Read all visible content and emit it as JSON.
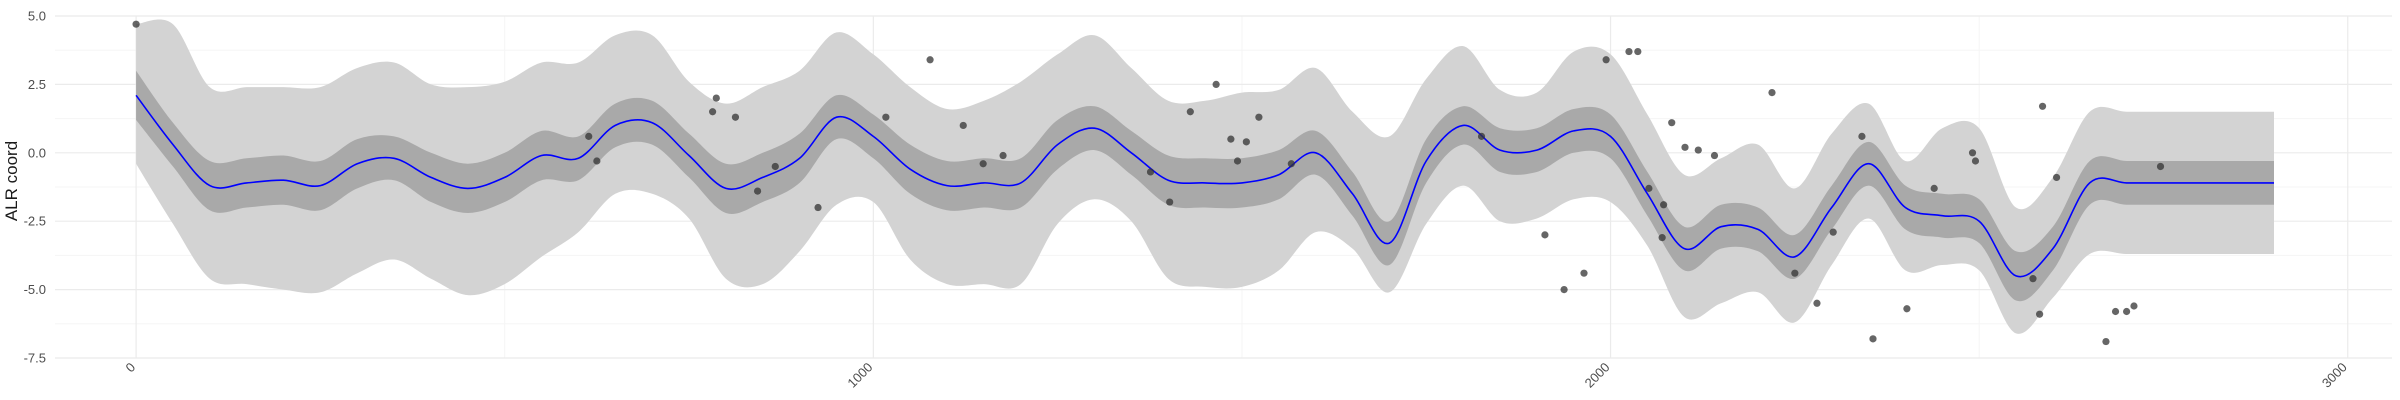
{
  "chart_data": {
    "type": "line",
    "title": "",
    "xlabel": "",
    "ylabel": "ALR coord",
    "xlim": [
      -110,
      3060
    ],
    "ylim": [
      -7.5,
      5.0
    ],
    "x_ticks": [
      0,
      1000,
      2000,
      3000
    ],
    "x_tick_labels": [
      "0",
      "1000",
      "2000",
      "3000"
    ],
    "y_ticks": [
      -7.5,
      -5.0,
      -2.5,
      0.0,
      2.5,
      5.0
    ],
    "y_tick_labels": [
      "-7.5",
      "-5.0",
      "-2.5",
      "0.0",
      "2.5",
      "5.0"
    ],
    "grid": true,
    "legend": "none",
    "colors": {
      "line": "#0000ff",
      "inner_band": "#a9a9a9",
      "outer_band": "#d3d3d3",
      "points": "#333333",
      "grid_major": "#ebebeb",
      "grid_minor": "#f5f5f5"
    },
    "x": [
      0,
      50,
      100,
      150,
      200,
      250,
      300,
      350,
      400,
      450,
      500,
      550,
      600,
      650,
      700,
      750,
      800,
      850,
      900,
      950,
      1000,
      1050,
      1100,
      1150,
      1200,
      1250,
      1300,
      1350,
      1400,
      1450,
      1500,
      1550,
      1600,
      1650,
      1700,
      1750,
      1800,
      1850,
      1900,
      1950,
      2000,
      2050,
      2100,
      2150,
      2200,
      2250,
      2300,
      2350,
      2400,
      2450,
      2500,
      2550,
      2600,
      2650,
      2700,
      2750,
      2800,
      2850,
      2900
    ],
    "mean": [
      2.1,
      0.3,
      -1.2,
      -1.1,
      -1.0,
      -1.2,
      -0.4,
      -0.2,
      -0.9,
      -1.3,
      -0.9,
      -0.1,
      -0.2,
      1.0,
      1.1,
      -0.1,
      -1.3,
      -0.9,
      -0.2,
      1.3,
      0.6,
      -0.6,
      -1.2,
      -1.1,
      -1.1,
      0.3,
      0.9,
      0.0,
      -1.0,
      -1.1,
      -1.1,
      -0.8,
      0.0,
      -1.5,
      -3.3,
      -0.3,
      1.0,
      0.1,
      0.1,
      0.8,
      0.6,
      -1.5,
      -3.5,
      -2.7,
      -2.8,
      -3.8,
      -2.0,
      -0.4,
      -2.0,
      -2.3,
      -2.5,
      -4.5,
      -3.5,
      -1.1,
      -1.1,
      -1.1,
      -1.1,
      -1.1,
      -1.1
    ],
    "inner_lo": [
      1.2,
      -0.5,
      -2.1,
      -2.0,
      -1.9,
      -2.1,
      -1.3,
      -1.0,
      -1.8,
      -2.2,
      -1.8,
      -1.0,
      -1.0,
      0.2,
      0.3,
      -0.9,
      -2.2,
      -1.8,
      -1.1,
      0.5,
      -0.2,
      -1.5,
      -2.1,
      -2.0,
      -2.0,
      -0.6,
      0.1,
      -0.8,
      -1.9,
      -2.0,
      -2.0,
      -1.7,
      -0.8,
      -2.3,
      -4.1,
      -1.1,
      0.3,
      -0.7,
      -0.7,
      0.0,
      -0.2,
      -2.3,
      -4.3,
      -3.5,
      -3.6,
      -4.6,
      -2.8,
      -1.2,
      -2.8,
      -3.1,
      -3.3,
      -5.4,
      -4.3,
      -1.9,
      -1.9,
      -1.9,
      -1.9,
      -1.9,
      -1.9
    ],
    "inner_hi": [
      3.0,
      1.1,
      -0.3,
      -0.2,
      -0.1,
      -0.3,
      0.5,
      0.6,
      0.0,
      -0.4,
      0.0,
      0.8,
      0.6,
      1.8,
      1.9,
      0.7,
      -0.4,
      0.0,
      0.7,
      2.1,
      1.4,
      0.3,
      -0.3,
      -0.2,
      -0.2,
      1.2,
      1.7,
      0.8,
      -0.1,
      -0.2,
      -0.2,
      0.1,
      0.8,
      -0.7,
      -2.5,
      0.5,
      1.7,
      0.9,
      0.9,
      1.6,
      1.4,
      -0.7,
      -2.7,
      -1.9,
      -2.0,
      -3.0,
      -1.2,
      0.4,
      -1.2,
      -1.5,
      -1.7,
      -3.6,
      -2.7,
      -0.3,
      -0.3,
      -0.3,
      -0.3,
      -0.3,
      -0.3
    ],
    "outer_lo": [
      -0.4,
      -2.6,
      -4.6,
      -4.8,
      -5.0,
      -5.1,
      -4.4,
      -3.9,
      -4.6,
      -5.2,
      -4.8,
      -3.8,
      -2.9,
      -1.5,
      -1.5,
      -2.4,
      -4.6,
      -4.8,
      -3.6,
      -1.9,
      -1.8,
      -3.9,
      -4.8,
      -4.8,
      -4.8,
      -2.6,
      -1.7,
      -2.5,
      -4.6,
      -4.9,
      -4.9,
      -4.3,
      -2.9,
      -3.5,
      -5.1,
      -2.6,
      -1.2,
      -2.5,
      -2.4,
      -1.7,
      -1.8,
      -3.4,
      -6.0,
      -5.5,
      -5.1,
      -6.2,
      -4.1,
      -2.4,
      -4.3,
      -4.1,
      -4.3,
      -6.6,
      -5.3,
      -3.7,
      -3.7,
      -3.7,
      -3.7,
      -3.7,
      -3.7
    ],
    "outer_hi": [
      4.7,
      4.7,
      2.4,
      2.4,
      2.4,
      2.4,
      3.1,
      3.3,
      2.5,
      2.4,
      2.6,
      3.3,
      3.3,
      4.3,
      4.3,
      2.6,
      1.8,
      2.4,
      3.0,
      4.4,
      3.6,
      2.4,
      1.6,
      1.9,
      2.6,
      3.6,
      4.3,
      3.1,
      1.9,
      1.9,
      2.2,
      2.3,
      3.1,
      1.5,
      0.6,
      2.7,
      3.9,
      2.3,
      2.2,
      3.7,
      3.6,
      1.4,
      -0.8,
      -0.2,
      0.3,
      -1.3,
      0.7,
      1.8,
      -0.3,
      0.9,
      0.9,
      -2.0,
      -0.9,
      1.5,
      1.5,
      1.5,
      1.5,
      1.5,
      1.5
    ],
    "points": [
      [
        0,
        4.7
      ],
      [
        614,
        0.6
      ],
      [
        625,
        -0.3
      ],
      [
        782,
        1.5
      ],
      [
        787,
        2.0
      ],
      [
        813,
        1.3
      ],
      [
        843,
        -1.4
      ],
      [
        867,
        -0.5
      ],
      [
        925,
        -2.0
      ],
      [
        1017,
        1.3
      ],
      [
        1077,
        3.4
      ],
      [
        1122,
        1.0
      ],
      [
        1149,
        -0.4
      ],
      [
        1176,
        -0.1
      ],
      [
        1376,
        -0.7
      ],
      [
        1402,
        -1.8
      ],
      [
        1430,
        1.5
      ],
      [
        1465,
        2.5
      ],
      [
        1485,
        0.5
      ],
      [
        1494,
        -0.3
      ],
      [
        1506,
        0.4
      ],
      [
        1523,
        1.3
      ],
      [
        1567,
        -0.4
      ],
      [
        1825,
        0.6
      ],
      [
        1911,
        -3.0
      ],
      [
        1937,
        -5.0
      ],
      [
        1964,
        -4.4
      ],
      [
        1994,
        3.4
      ],
      [
        2025,
        3.7
      ],
      [
        2037,
        3.7
      ],
      [
        2052,
        -1.3
      ],
      [
        2070,
        -3.1
      ],
      [
        2072,
        -1.9
      ],
      [
        2083,
        1.1
      ],
      [
        2101,
        0.2
      ],
      [
        2119,
        0.1
      ],
      [
        2141,
        -0.1
      ],
      [
        2219,
        2.2
      ],
      [
        2250,
        -4.4
      ],
      [
        2280,
        -5.5
      ],
      [
        2302,
        -2.9
      ],
      [
        2341,
        0.6
      ],
      [
        2356,
        -6.8
      ],
      [
        2402,
        -5.7
      ],
      [
        2439,
        -1.3
      ],
      [
        2491,
        0.0
      ],
      [
        2495,
        -0.3
      ],
      [
        2573,
        -4.6
      ],
      [
        2582,
        -5.9
      ],
      [
        2586,
        1.7
      ],
      [
        2605,
        -0.9
      ],
      [
        2672,
        -6.9
      ],
      [
        2685,
        -5.8
      ],
      [
        2700,
        -5.8
      ],
      [
        2710,
        -5.6
      ],
      [
        2746,
        -0.5
      ]
    ]
  }
}
